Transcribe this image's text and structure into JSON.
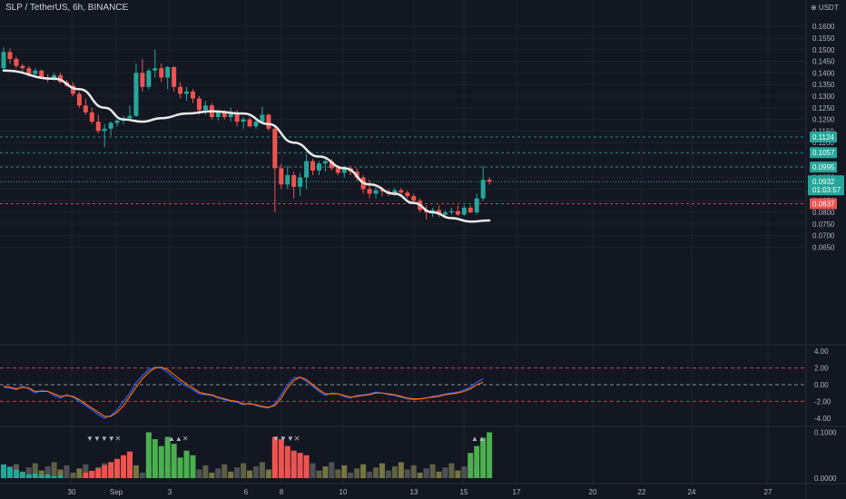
{
  "header": {
    "title": "SLP / TetherUS, 6h, BINANCE",
    "currency": "USDT"
  },
  "colors": {
    "background": "#131722",
    "up": "#26a69a",
    "down": "#ef5350",
    "ma": "#e8e8e8",
    "osc_blue": "#2962ff",
    "osc_orange": "#ff6d00",
    "grid": "#1e222d"
  },
  "chart_data": [
    {
      "type": "candlestick",
      "title": "SLP / TetherUS, 6h, BINANCE",
      "ylim": [
        0.06,
        0.165
      ],
      "y_ticks": [
        "0.1600",
        "0.1550",
        "0.1500",
        "0.1450",
        "0.1400",
        "0.1350",
        "0.1300",
        "0.1250",
        "0.1200",
        "0.1150",
        "0.1100",
        "0.1050",
        "0.1000",
        "0.0950",
        "0.0900",
        "0.0850",
        "0.0800",
        "0.0750",
        "0.0700",
        "0.0650"
      ],
      "x_ticks": [
        "30",
        "Sep",
        "3",
        "6",
        "8",
        "10",
        "13",
        "15",
        "17",
        "20",
        "22",
        "24",
        "27"
      ],
      "candles": [
        [
          0.142,
          0.151,
          0.1405,
          0.149
        ],
        [
          0.149,
          0.1505,
          0.144,
          0.146
        ],
        [
          0.146,
          0.147,
          0.142,
          0.143
        ],
        [
          0.143,
          0.144,
          0.14,
          0.142
        ],
        [
          0.142,
          0.143,
          0.1385,
          0.1395
        ],
        [
          0.1395,
          0.142,
          0.138,
          0.141
        ],
        [
          0.141,
          0.1415,
          0.1375,
          0.138
        ],
        [
          0.138,
          0.1395,
          0.136,
          0.1375
        ],
        [
          0.1375,
          0.14,
          0.1365,
          0.139
        ],
        [
          0.139,
          0.14,
          0.1355,
          0.136
        ],
        [
          0.136,
          0.137,
          0.134,
          0.1345
        ],
        [
          0.1345,
          0.136,
          0.13,
          0.131
        ],
        [
          0.131,
          0.132,
          0.125,
          0.126
        ],
        [
          0.126,
          0.129,
          0.122,
          0.123
        ],
        [
          0.123,
          0.125,
          0.118,
          0.119
        ],
        [
          0.119,
          0.122,
          0.114,
          0.115
        ],
        [
          0.115,
          0.118,
          0.108,
          0.116
        ],
        [
          0.116,
          0.119,
          0.113,
          0.1185
        ],
        [
          0.1185,
          0.12,
          0.117,
          0.1195
        ],
        [
          0.1195,
          0.1215,
          0.118,
          0.1205
        ],
        [
          0.1205,
          0.126,
          0.1195,
          0.1215
        ],
        [
          0.1215,
          0.144,
          0.121,
          0.14
        ],
        [
          0.14,
          0.146,
          0.132,
          0.134
        ],
        [
          0.134,
          0.142,
          0.133,
          0.141
        ],
        [
          0.141,
          0.15,
          0.138,
          0.142
        ],
        [
          0.142,
          0.144,
          0.136,
          0.138
        ],
        [
          0.138,
          0.143,
          0.133,
          0.1425
        ],
        [
          0.1425,
          0.143,
          0.132,
          0.134
        ],
        [
          0.134,
          0.136,
          0.129,
          0.131
        ],
        [
          0.131,
          0.134,
          0.128,
          0.132
        ],
        [
          0.132,
          0.133,
          0.127,
          0.129
        ],
        [
          0.129,
          0.13,
          0.122,
          0.124
        ],
        [
          0.124,
          0.128,
          0.122,
          0.126
        ],
        [
          0.126,
          0.127,
          0.12,
          0.121
        ],
        [
          0.121,
          0.124,
          0.1195,
          0.123
        ],
        [
          0.123,
          0.124,
          0.12,
          0.121
        ],
        [
          0.121,
          0.125,
          0.119,
          0.123
        ],
        [
          0.123,
          0.124,
          0.117,
          0.119
        ],
        [
          0.119,
          0.121,
          0.116,
          0.12
        ],
        [
          0.12,
          0.121,
          0.1165,
          0.117
        ],
        [
          0.117,
          0.12,
          0.116,
          0.119
        ],
        [
          0.119,
          0.1255,
          0.118,
          0.122
        ],
        [
          0.122,
          0.1225,
          0.115,
          0.116
        ],
        [
          0.116,
          0.117,
          0.08,
          0.099
        ],
        [
          0.099,
          0.101,
          0.09,
          0.092
        ],
        [
          0.092,
          0.1,
          0.09,
          0.096
        ],
        [
          0.096,
          0.0975,
          0.086,
          0.091
        ],
        [
          0.091,
          0.097,
          0.087,
          0.095
        ],
        [
          0.095,
          0.105,
          0.09,
          0.102
        ],
        [
          0.102,
          0.103,
          0.096,
          0.098
        ],
        [
          0.098,
          0.102,
          0.096,
          0.101
        ],
        [
          0.101,
          0.103,
          0.0975,
          0.102
        ],
        [
          0.102,
          0.103,
          0.098,
          0.099
        ],
        [
          0.099,
          0.1,
          0.096,
          0.097
        ],
        [
          0.097,
          0.1,
          0.095,
          0.099
        ],
        [
          0.099,
          0.1,
          0.096,
          0.0975
        ],
        [
          0.0975,
          0.099,
          0.0935,
          0.095
        ],
        [
          0.095,
          0.096,
          0.088,
          0.09
        ],
        [
          0.09,
          0.094,
          0.086,
          0.088
        ],
        [
          0.088,
          0.091,
          0.086,
          0.0895
        ],
        [
          0.0895,
          0.091,
          0.087,
          0.089
        ],
        [
          0.089,
          0.09,
          0.087,
          0.088
        ],
        [
          0.088,
          0.0905,
          0.087,
          0.0895
        ],
        [
          0.0895,
          0.0905,
          0.088,
          0.0885
        ],
        [
          0.0885,
          0.0895,
          0.086,
          0.087
        ],
        [
          0.087,
          0.088,
          0.084,
          0.085
        ],
        [
          0.085,
          0.086,
          0.08,
          0.081
        ],
        [
          0.081,
          0.083,
          0.077,
          0.08
        ],
        [
          0.08,
          0.082,
          0.078,
          0.081
        ],
        [
          0.081,
          0.083,
          0.078,
          0.079
        ],
        [
          0.079,
          0.081,
          0.0775,
          0.08
        ],
        [
          0.08,
          0.082,
          0.079,
          0.0805
        ],
        [
          0.0805,
          0.083,
          0.0785,
          0.079
        ],
        [
          0.079,
          0.083,
          0.0785,
          0.082
        ],
        [
          0.082,
          0.083,
          0.0795,
          0.08
        ],
        [
          0.08,
          0.088,
          0.079,
          0.086
        ],
        [
          0.086,
          0.1,
          0.085,
          0.094
        ],
        [
          0.094,
          0.095,
          0.092,
          0.0932
        ]
      ],
      "moving_average": [
        [
          0,
          0.141
        ],
        [
          8,
          0.1375
        ],
        [
          12,
          0.133
        ],
        [
          16,
          0.125
        ],
        [
          19,
          0.12
        ],
        [
          22,
          0.119
        ],
        [
          25,
          0.1205
        ],
        [
          29,
          0.1225
        ],
        [
          33,
          0.1235
        ],
        [
          38,
          0.1225
        ],
        [
          42,
          0.118
        ],
        [
          46,
          0.11
        ],
        [
          50,
          0.104
        ],
        [
          54,
          0.099
        ],
        [
          58,
          0.092
        ],
        [
          62,
          0.088
        ],
        [
          65,
          0.084
        ],
        [
          68,
          0.08
        ],
        [
          71,
          0.0775
        ],
        [
          74,
          0.076
        ],
        [
          77,
          0.0765
        ]
      ],
      "horizontal_levels": [
        {
          "value": 0.1124,
          "label": "0.1124",
          "color": "#26a69a"
        },
        {
          "value": 0.1057,
          "label": "0.1057",
          "color": "#26a69a"
        },
        {
          "value": 0.0995,
          "label": "0.0995",
          "color": "#26a69a"
        },
        {
          "value": 0.0837,
          "label": "0.0837",
          "color": "#ef5350"
        }
      ],
      "last_price": {
        "value": 0.0932,
        "label": "0.0932",
        "countdown": "01:03:57",
        "color": "#26a69a"
      }
    },
    {
      "type": "line",
      "ylim": [
        -5,
        5
      ],
      "y_ticks": [
        "4.00",
        "2.00",
        "0.00",
        "-2.00",
        "-4.00"
      ],
      "reference_levels": [
        2,
        0,
        -2
      ],
      "series": [
        {
          "color": "#2962ff",
          "values": [
            -0.3,
            -0.4,
            -0.6,
            -0.2,
            -0.5,
            -1.0,
            -0.7,
            -0.8,
            -1.3,
            -1.6,
            -1.2,
            -1.5,
            -2.0,
            -2.5,
            -3.0,
            -3.6,
            -4.0,
            -3.7,
            -3.0,
            -2.0,
            -1.0,
            0.2,
            1.1,
            1.8,
            2.1,
            2.0,
            1.5,
            0.8,
            0.3,
            -0.2,
            -0.6,
            -1.1,
            -1.2,
            -1.3,
            -1.6,
            -1.8,
            -2.0,
            -2.1,
            -2.4,
            -2.2,
            -2.5,
            -2.7,
            -2.8,
            -2.3,
            -1.2,
            0.0,
            0.8,
            0.9,
            0.4,
            -0.2,
            -0.8,
            -1.3,
            -1.0,
            -1.1,
            -1.4,
            -1.6,
            -1.3,
            -1.2,
            -1.1,
            -0.9,
            -1.0,
            -1.2,
            -1.3,
            -1.5,
            -1.7,
            -1.8,
            -1.7,
            -1.6,
            -1.4,
            -1.3,
            -1.1,
            -1.0,
            -0.9,
            -0.6,
            -0.3,
            0.3,
            0.7
          ]
        },
        {
          "color": "#ff6d00",
          "values": [
            -0.2,
            -0.3,
            -0.5,
            -0.3,
            -0.4,
            -0.8,
            -0.8,
            -0.8,
            -1.1,
            -1.4,
            -1.3,
            -1.4,
            -1.8,
            -2.3,
            -2.8,
            -3.3,
            -3.8,
            -3.8,
            -3.3,
            -2.5,
            -1.4,
            -0.3,
            0.7,
            1.5,
            2.0,
            2.1,
            1.8,
            1.2,
            0.6,
            0.1,
            -0.4,
            -0.9,
            -1.1,
            -1.2,
            -1.5,
            -1.7,
            -1.9,
            -2.0,
            -2.3,
            -2.3,
            -2.4,
            -2.6,
            -2.7,
            -2.5,
            -1.6,
            -0.4,
            0.5,
            0.9,
            0.6,
            0.0,
            -0.6,
            -1.1,
            -1.1,
            -1.1,
            -1.3,
            -1.5,
            -1.4,
            -1.3,
            -1.2,
            -1.0,
            -1.0,
            -1.1,
            -1.2,
            -1.4,
            -1.6,
            -1.7,
            -1.7,
            -1.6,
            -1.5,
            -1.4,
            -1.2,
            -1.1,
            -1.0,
            -0.8,
            -0.5,
            0.0,
            0.3
          ]
        }
      ]
    },
    {
      "type": "bar",
      "ylim": [
        0,
        0.14
      ],
      "y_ticks": [
        "0.1000",
        "0.0000"
      ],
      "bar_groups": [
        {
          "color": "#26a69a",
          "values": [
            0.03,
            0.025,
            0.018,
            0.012,
            0.008,
            0.01,
            0.006,
            0.008,
            0.004,
            0.006
          ]
        },
        {
          "color": "#ef5350",
          "values": [
            0.012,
            0.016,
            0.02,
            0.028,
            0.035,
            0.042,
            0.05,
            0.058
          ]
        },
        {
          "color": "#4caf50",
          "values": [
            0.1,
            0.085,
            0.07,
            0.09,
            0.075,
            0.045,
            0.06,
            0.05
          ]
        },
        {
          "color": "#ef5350",
          "values": [
            0.09,
            0.085,
            0.07,
            0.06,
            0.055,
            0.05
          ]
        },
        {
          "color": "#4caf50",
          "values": [
            0.055,
            0.07,
            0.088,
            0.1
          ]
        }
      ],
      "marker_text": [
        "▼▼▼▼✕",
        "▲▲✕",
        "▼▼▼✕",
        "▲▲"
      ]
    }
  ]
}
